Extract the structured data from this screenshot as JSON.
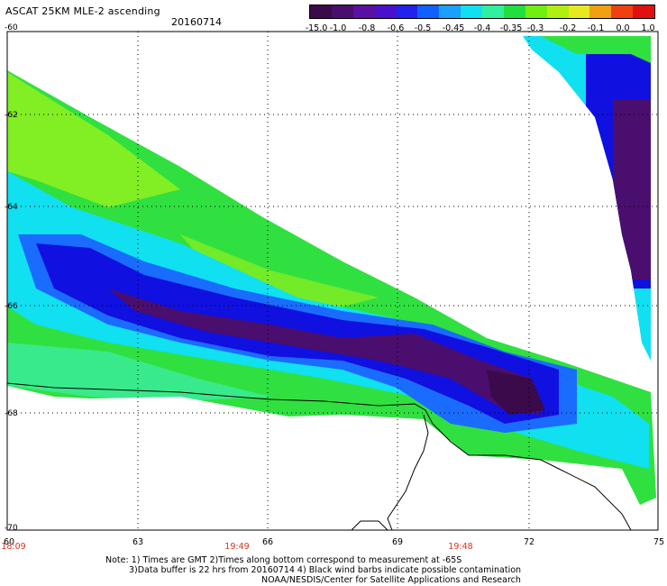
{
  "header": {
    "title": "ASCAT 25KM MLE-2 ascending",
    "date": "20160714"
  },
  "legend": {
    "labels": [
      "-15.0",
      "-1.0",
      "-0.8",
      "-0.6",
      "-0.5",
      "-0.45",
      "-0.4",
      "-0.35",
      "-0.3",
      "-0.2",
      "-0.1",
      "0.0",
      "1.0"
    ],
    "colors": [
      "#3a0a4a",
      "#4a0e6e",
      "#5a10a0",
      "#4a10cc",
      "#2222ee",
      "#1060ff",
      "#1aa0ff",
      "#10e0f0",
      "#30f0a0",
      "#20e040",
      "#70f010",
      "#b0f010",
      "#e8e820",
      "#f0a010",
      "#f04010",
      "#e01010"
    ]
  },
  "map": {
    "lat_labels": [
      "-60",
      "-62",
      "-64",
      "-66",
      "-68",
      "-70"
    ],
    "lon_labels": [
      "60",
      "63",
      "66",
      "69",
      "72",
      "75"
    ],
    "time_labels": [
      "18:09",
      "19:49",
      "19:48"
    ],
    "colors": {
      "deep": "#3a0a4a",
      "dark": "#4a0e6e",
      "blue": "#1010e0",
      "mid": "#1a6cff",
      "cyan": "#10e0f0",
      "aqua": "#40f0c0",
      "green": "#30e040",
      "lime": "#90f020",
      "coast": "#000000",
      "grid": "#000000"
    }
  },
  "notes": {
    "line1": "Note: 1) Times are GMT 2)Times along bottom correspond to measurement at -65S",
    "line2": "3)Data buffer is 22 hrs from 20160714 4) Black wind barbs indicate possible contamination",
    "line3": "NOAA/NESDIS/Center for Satellite Applications and Research"
  }
}
